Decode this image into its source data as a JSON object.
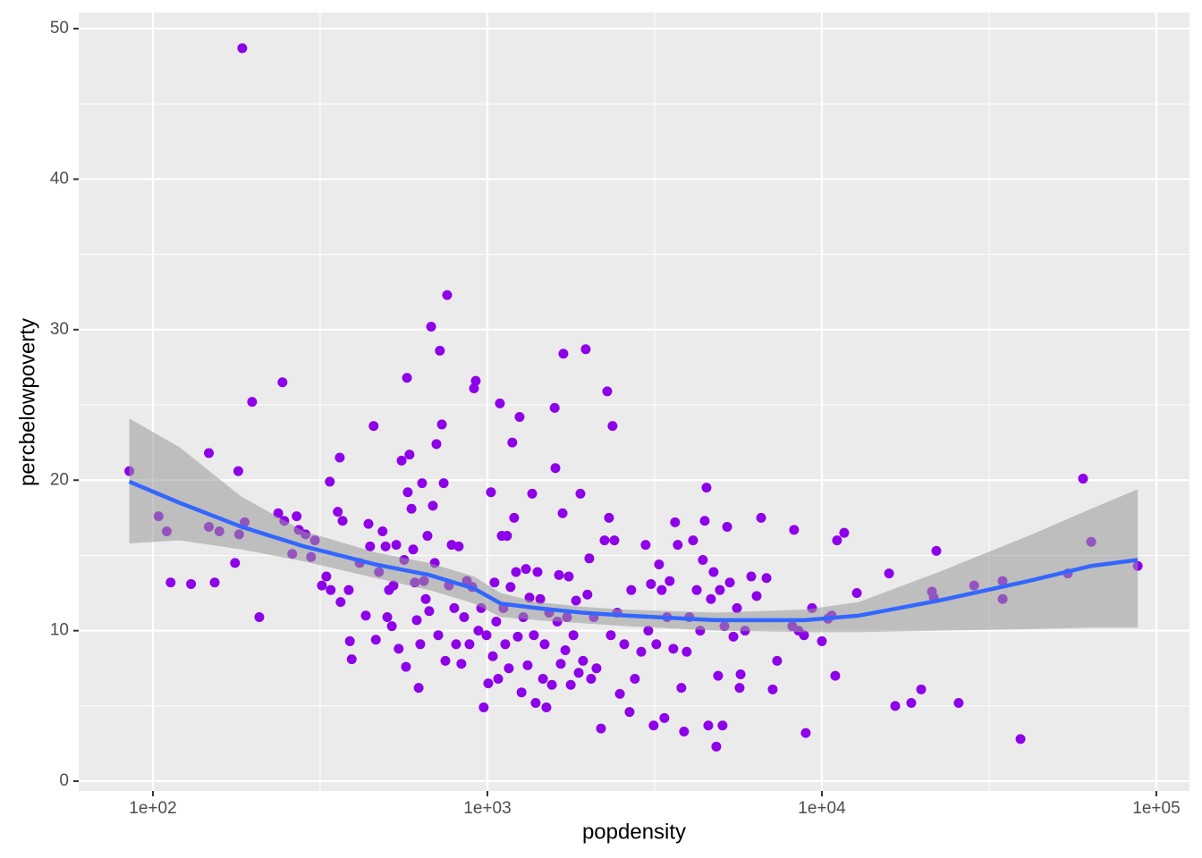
{
  "chart_data": {
    "type": "scatter",
    "xlabel": "popdensity",
    "ylabel": "percbelowpoverty",
    "xscale": "log",
    "grid": true,
    "xlim": [
      60,
      125600
    ],
    "ylim": [
      -0.65,
      51.07
    ],
    "xticks": [
      {
        "value": 100,
        "label": "1e+02"
      },
      {
        "value": 1000,
        "label": "1e+03"
      },
      {
        "value": 10000,
        "label": "1e+04"
      },
      {
        "value": 100000,
        "label": "1e+05"
      }
    ],
    "xminor": [
      316.2,
      3162,
      31623
    ],
    "yticks": [
      0,
      10,
      20,
      30,
      40,
      50
    ],
    "yminor": [
      5,
      15,
      25,
      35,
      45
    ],
    "points": {
      "color": "#8e00e8",
      "x": [
        85,
        185,
        104,
        110,
        113,
        130,
        147,
        147,
        153,
        158,
        176,
        180,
        181,
        188,
        198,
        208,
        237,
        244,
        247,
        261,
        269,
        273,
        286,
        297,
        305,
        320,
        330,
        338,
        340,
        357,
        362,
        364,
        369,
        385,
        388,
        393,
        415,
        433,
        441,
        446,
        457,
        464,
        474,
        486,
        496,
        502,
        508,
        518,
        524,
        534,
        543,
        554,
        564,
        571,
        575,
        578,
        585,
        593,
        600,
        607,
        615,
        623,
        630,
        638,
        646,
        654,
        662,
        670,
        679,
        687,
        696,
        704,
        713,
        721,
        731,
        740,
        749,
        758,
        767,
        782,
        796,
        806,
        821,
        836,
        852,
        868,
        884,
        901,
        912,
        923,
        940,
        958,
        975,
        994,
        1006,
        1025,
        1038,
        1050,
        1063,
        1077,
        1090,
        1104,
        1117,
        1131,
        1145,
        1159,
        1173,
        1187,
        1202,
        1218,
        1233,
        1248,
        1265,
        1280,
        1304,
        1319,
        1336,
        1361,
        1377,
        1394,
        1412,
        1439,
        1466,
        1483,
        1501,
        1530,
        1559,
        1589,
        1597,
        1618,
        1637,
        1657,
        1678,
        1687,
        1710,
        1730,
        1751,
        1775,
        1808,
        1841,
        1875,
        1897,
        1932,
        1968,
        1991,
        2017,
        2042,
        2080,
        2119,
        2186,
        2240,
        2282,
        2310,
        2339,
        2367,
        2397,
        2443,
        2489,
        2566,
        2661,
        2692,
        2760,
        2884,
        2972,
        3027,
        3083,
        3141,
        3199,
        3260,
        3320,
        3382,
        3444,
        3508,
        3597,
        3640,
        3708,
        3801,
        3872,
        3944,
        4018,
        4120,
        4225,
        4327,
        4407,
        4464,
        4519,
        4575,
        4659,
        4745,
        4834,
        4895,
        4955,
        5047,
        5114,
        5210,
        5307,
        5439,
        5573,
        5675,
        5714,
        5893,
        6149,
        6382,
        6582,
        6829,
        7127,
        7348,
        8257,
        8158,
        8518,
        8843,
        8950,
        9346,
        10000,
        10438,
        10700,
        10965,
        11100,
        11660,
        12720,
        15880,
        16570,
        18500,
        19810,
        21330,
        21600,
        21990,
        25640,
        28510,
        34700,
        34700,
        39250,
        54360,
        60370,
        63860,
        87980
      ],
      "y": [
        20.6,
        48.7,
        17.6,
        16.6,
        13.2,
        13.1,
        21.8,
        16.9,
        13.2,
        16.6,
        14.5,
        20.6,
        16.4,
        17.2,
        25.2,
        10.9,
        17.8,
        26.5,
        17.3,
        15.1,
        17.6,
        16.7,
        16.4,
        14.9,
        16.0,
        13.0,
        13.6,
        19.9,
        12.7,
        17.9,
        21.5,
        11.9,
        17.3,
        12.7,
        9.3,
        8.1,
        14.5,
        11.0,
        17.1,
        15.6,
        23.6,
        9.4,
        13.9,
        16.6,
        15.6,
        10.9,
        12.7,
        10.3,
        13.0,
        15.7,
        8.8,
        21.3,
        14.7,
        7.6,
        26.8,
        19.2,
        21.7,
        18.1,
        15.4,
        13.2,
        10.7,
        6.2,
        9.1,
        19.8,
        13.3,
        12.1,
        16.3,
        11.3,
        30.2,
        18.3,
        14.5,
        22.4,
        9.7,
        28.6,
        23.7,
        19.8,
        8.0,
        32.3,
        13.0,
        15.7,
        11.5,
        9.1,
        15.6,
        7.8,
        10.9,
        13.3,
        9.1,
        12.9,
        26.1,
        26.6,
        10.0,
        11.5,
        4.9,
        9.7,
        6.5,
        19.2,
        8.3,
        13.2,
        10.6,
        6.8,
        25.1,
        16.3,
        11.5,
        9.1,
        16.3,
        7.5,
        12.9,
        22.5,
        17.5,
        13.9,
        9.6,
        24.2,
        5.9,
        10.9,
        14.1,
        7.7,
        12.2,
        19.1,
        9.7,
        5.2,
        13.9,
        12.1,
        6.8,
        9.1,
        4.9,
        11.2,
        6.4,
        24.8,
        20.8,
        10.6,
        13.7,
        7.8,
        17.8,
        28.4,
        8.7,
        10.9,
        13.6,
        6.4,
        9.7,
        12.0,
        7.2,
        19.1,
        8.0,
        28.7,
        12.4,
        14.8,
        6.8,
        10.9,
        7.5,
        3.5,
        16.0,
        25.9,
        17.5,
        9.7,
        23.6,
        16.0,
        11.2,
        5.8,
        9.1,
        4.6,
        12.7,
        6.8,
        8.6,
        15.7,
        10.0,
        13.1,
        3.7,
        9.1,
        14.4,
        12.7,
        4.2,
        10.9,
        13.3,
        8.8,
        17.2,
        15.7,
        6.2,
        3.3,
        8.6,
        10.9,
        16.0,
        12.7,
        10.0,
        14.7,
        17.3,
        19.5,
        3.7,
        12.1,
        13.9,
        2.3,
        7.0,
        12.7,
        3.7,
        10.3,
        16.9,
        13.2,
        9.6,
        11.5,
        6.2,
        7.1,
        10.0,
        13.6,
        12.3,
        17.5,
        13.5,
        6.1,
        8.0,
        16.7,
        10.3,
        10.0,
        9.7,
        3.2,
        11.5,
        9.3,
        10.8,
        11.0,
        7.0,
        16.0,
        16.5,
        12.5,
        13.8,
        5.0,
        5.2,
        6.1,
        12.6,
        12.2,
        15.3,
        5.2,
        13.0,
        13.3,
        12.1,
        2.8,
        13.8,
        20.1,
        15.9,
        14.3
      ]
    },
    "smooth": {
      "color": "#3366ff",
      "band_color": "#999999",
      "x": [
        85,
        120,
        184,
        283,
        463,
        670,
        912,
        1097,
        1403,
        1910,
        2596,
        4808,
        8892,
        12880,
        22390,
        41500,
        63860,
        87980
      ],
      "y": [
        19.9,
        18.5,
        16.9,
        15.6,
        14.4,
        13.7,
        12.8,
        11.8,
        11.5,
        11.2,
        11.0,
        10.7,
        10.7,
        11.0,
        12.0,
        13.3,
        14.3,
        14.7
      ],
      "lower": [
        15.8,
        16.0,
        15.4,
        14.6,
        13.5,
        12.7,
        11.8,
        10.9,
        10.7,
        10.5,
        10.3,
        10.0,
        9.9,
        9.9,
        10.0,
        10.1,
        10.2,
        10.2
      ],
      "upper": [
        24.1,
        22.2,
        18.9,
        16.6,
        15.2,
        14.5,
        13.6,
        12.5,
        11.9,
        11.6,
        11.4,
        11.2,
        11.4,
        11.9,
        13.9,
        16.3,
        18.1,
        19.4
      ]
    }
  }
}
